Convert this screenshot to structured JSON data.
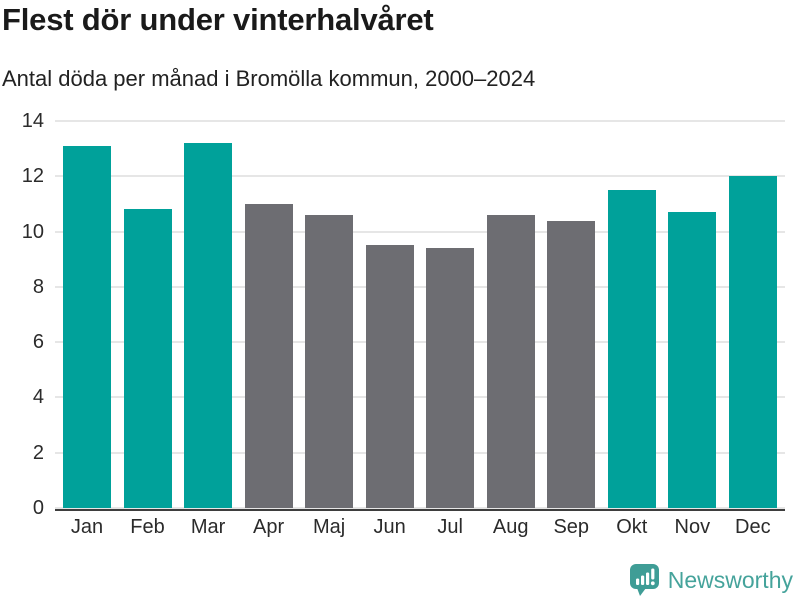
{
  "header": {
    "title": "Flest dör under vinterhalvåret",
    "subtitle": "Antal döda per månad i Bromölla kommun, 2000–2024"
  },
  "chart_data": {
    "type": "bar",
    "title": "Flest dör under vinterhalvåret",
    "subtitle": "Antal döda per månad i Bromölla kommun, 2000–2024",
    "categories": [
      "Jan",
      "Feb",
      "Mar",
      "Apr",
      "Maj",
      "Jun",
      "Jul",
      "Aug",
      "Sep",
      "Okt",
      "Nov",
      "Dec"
    ],
    "values": [
      13.1,
      10.8,
      13.2,
      11.0,
      10.6,
      9.5,
      9.4,
      10.6,
      10.4,
      11.5,
      10.7,
      12.0
    ],
    "highlighted": [
      true,
      true,
      true,
      false,
      false,
      false,
      false,
      false,
      false,
      true,
      true,
      true
    ],
    "xlabel": "",
    "ylabel": "",
    "ylim": [
      0,
      14
    ],
    "yticks": [
      0,
      2,
      4,
      6,
      8,
      10,
      12,
      14
    ],
    "grid": true,
    "legend_position": "none",
    "colors": {
      "highlight": "#00a19a",
      "muted": "#6d6d72",
      "gridline": "#e6e6e6",
      "axis_line": "#3e3e3e",
      "tick_text": "#2b2b2b"
    }
  },
  "footer": {
    "brand": "Newsworthy",
    "brand_color": "#45a39b",
    "logo_icon": "bar-chart-speech-bubble-icon"
  }
}
